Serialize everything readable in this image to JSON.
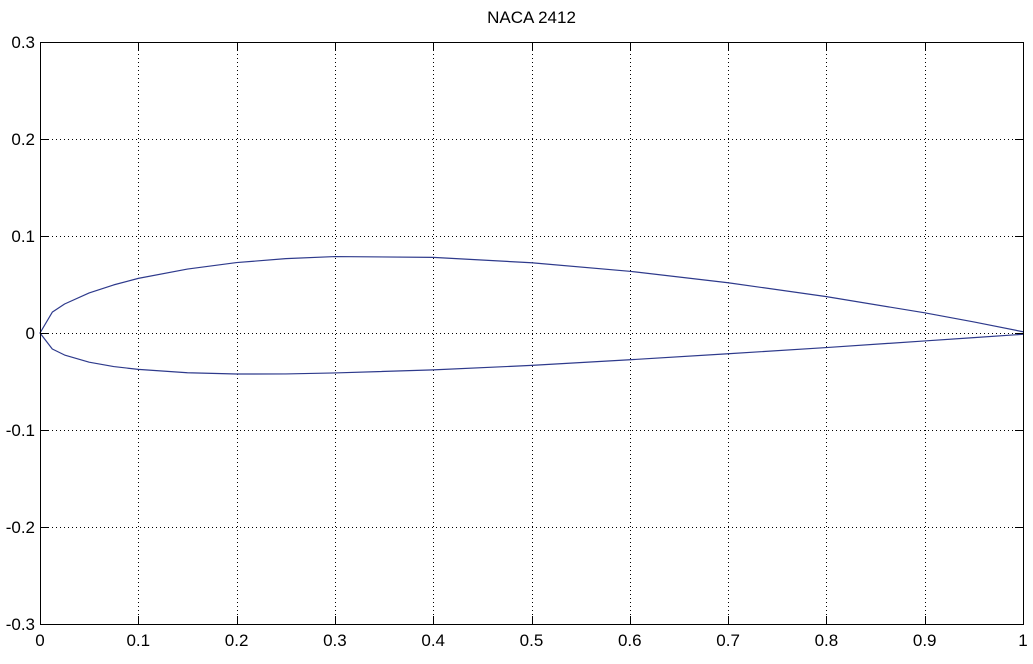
{
  "chart_data": {
    "type": "line",
    "title": "NACA 2412",
    "xlabel": "",
    "ylabel": "",
    "xlim": [
      0,
      1
    ],
    "ylim": [
      -0.3,
      0.3
    ],
    "grid": true,
    "line_color": "#2e3a8c",
    "x_ticks": [
      0,
      0.1,
      0.2,
      0.3,
      0.4,
      0.5,
      0.6,
      0.7,
      0.8,
      0.9,
      1
    ],
    "x_tick_labels": [
      "0",
      "0.1",
      "0.2",
      "0.3",
      "0.4",
      "0.5",
      "0.6",
      "0.7",
      "0.8",
      "0.9",
      "1"
    ],
    "y_ticks": [
      -0.3,
      -0.2,
      -0.1,
      0,
      0.1,
      0.2,
      0.3
    ],
    "y_tick_labels": [
      "-0.3",
      "-0.2",
      "-0.1",
      "0",
      "0.1",
      "0.2",
      "0.3"
    ],
    "series": [
      {
        "x": [
          1.0,
          0.95,
          0.9,
          0.8,
          0.7,
          0.6,
          0.5,
          0.4,
          0.3,
          0.25,
          0.2,
          0.15,
          0.1,
          0.075,
          0.05,
          0.025,
          0.0125,
          0.0,
          0.0125,
          0.025,
          0.05,
          0.075,
          0.1,
          0.15,
          0.2,
          0.25,
          0.3,
          0.4,
          0.5,
          0.6,
          0.7,
          0.8,
          0.9,
          0.95,
          1.0
        ],
        "y": [
          0.0013,
          0.0114,
          0.0208,
          0.0375,
          0.0518,
          0.0636,
          0.0724,
          0.078,
          0.0788,
          0.0767,
          0.0726,
          0.0659,
          0.0563,
          0.0496,
          0.0413,
          0.0299,
          0.0215,
          0.0,
          -0.0165,
          -0.0227,
          -0.0301,
          -0.0346,
          -0.0375,
          -0.041,
          -0.0423,
          -0.0422,
          -0.0412,
          -0.038,
          -0.0334,
          -0.0276,
          -0.0214,
          -0.015,
          -0.0082,
          -0.0048,
          -0.0013
        ]
      }
    ]
  }
}
